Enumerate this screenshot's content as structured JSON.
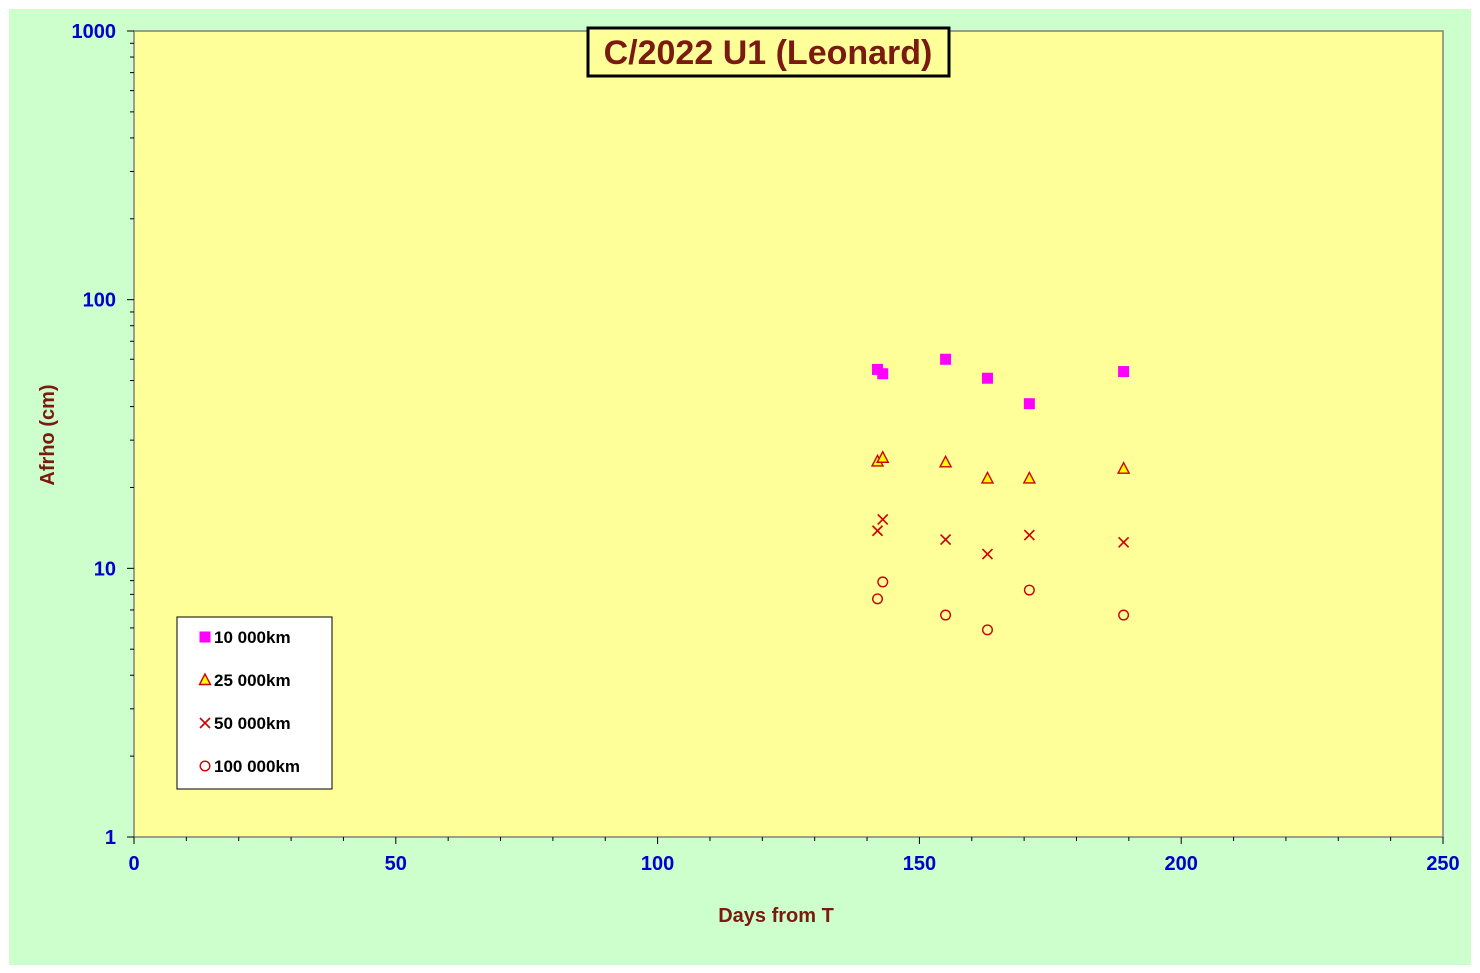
{
  "colors": {
    "background": "#ccffcc",
    "plot_area": "#ffff99",
    "title_text": "#7a1a10",
    "tick_text": "#0000cc",
    "series_square": "#ff00ff",
    "series_triangle_fill": "#ffff00",
    "series_triangle_edge": "#cc0000",
    "series_x": "#cc0000",
    "series_circle": "#cc0000"
  },
  "chart_data": {
    "type": "scatter",
    "title": "C/2022 U1 (Leonard)",
    "xlabel": "Days from T",
    "ylabel": "Afrho (cm)",
    "xlim": [
      0,
      250
    ],
    "ylim": [
      1,
      1000
    ],
    "yscale": "log",
    "x_ticks": [
      "0",
      "50",
      "100",
      "150",
      "200",
      "250"
    ],
    "y_ticks": [
      "1",
      "10",
      "100",
      "1000"
    ],
    "grid": false,
    "legend_position": "bottom-left",
    "series": [
      {
        "name": "10 000km",
        "marker": "square",
        "points": [
          [
            142,
            55
          ],
          [
            143,
            53
          ],
          [
            155,
            60
          ],
          [
            163,
            51
          ],
          [
            171,
            41
          ],
          [
            189,
            54
          ]
        ]
      },
      {
        "name": "25 000km",
        "marker": "triangle",
        "points": [
          [
            142,
            25
          ],
          [
            143,
            25.8
          ],
          [
            155,
            24.8
          ],
          [
            163,
            21.6
          ],
          [
            171,
            21.6
          ],
          [
            189,
            23.5
          ]
        ]
      },
      {
        "name": "50 000km",
        "marker": "x",
        "points": [
          [
            142,
            13.8
          ],
          [
            143,
            15.2
          ],
          [
            155,
            12.8
          ],
          [
            163,
            11.3
          ],
          [
            171,
            13.3
          ],
          [
            189,
            12.5
          ]
        ]
      },
      {
        "name": "100 000km",
        "marker": "circle",
        "points": [
          [
            142,
            7.7
          ],
          [
            143,
            8.9
          ],
          [
            155,
            6.7
          ],
          [
            163,
            5.9
          ],
          [
            171,
            8.3
          ],
          [
            189,
            6.7
          ]
        ]
      }
    ]
  }
}
